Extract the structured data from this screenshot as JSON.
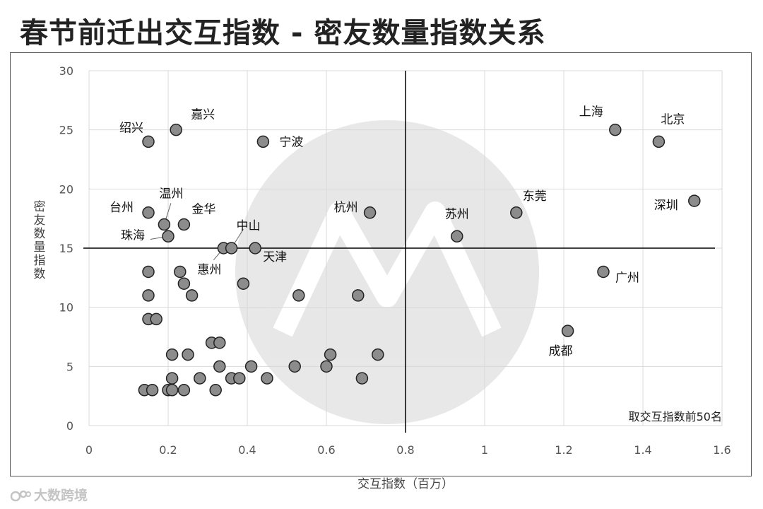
{
  "page": {
    "title": "春节前迁出交互指数 - 密友数量指数关系",
    "brand": "大数跨境"
  },
  "chart_data": {
    "type": "scatter",
    "xlabel": "交互指数（百万）",
    "ylabel": "密友数量指数",
    "xlim": [
      0,
      1.6
    ],
    "ylim": [
      0,
      30
    ],
    "xticks": [
      0,
      0.2,
      0.4,
      0.6,
      0.8,
      1,
      1.2,
      1.4,
      1.6
    ],
    "yticks": [
      0,
      5,
      10,
      15,
      20,
      25,
      30
    ],
    "grid": true,
    "reference_lines": {
      "x": 0.8,
      "y": 15
    },
    "annotation": "取交互指数前50名",
    "colors": {
      "point_fill": "#8c8c8c",
      "point_stroke": "#222222",
      "grid": "#d9d9d9",
      "axis_text": "#555555"
    },
    "points": [
      {
        "x": 1.44,
        "y": 24,
        "label": "北京"
      },
      {
        "x": 1.33,
        "y": 25,
        "label": "上海"
      },
      {
        "x": 1.53,
        "y": 19,
        "label": "深圳"
      },
      {
        "x": 1.3,
        "y": 13,
        "label": "广州"
      },
      {
        "x": 1.21,
        "y": 8,
        "label": "成都"
      },
      {
        "x": 1.08,
        "y": 18,
        "label": "东莞"
      },
      {
        "x": 0.93,
        "y": 16,
        "label": "苏州"
      },
      {
        "x": 0.71,
        "y": 18,
        "label": "杭州"
      },
      {
        "x": 0.44,
        "y": 24,
        "label": "宁波"
      },
      {
        "x": 0.22,
        "y": 25,
        "label": "嘉兴"
      },
      {
        "x": 0.15,
        "y": 24,
        "label": "绍兴"
      },
      {
        "x": 0.15,
        "y": 18,
        "label": "台州"
      },
      {
        "x": 0.19,
        "y": 17,
        "label": "温州"
      },
      {
        "x": 0.24,
        "y": 17,
        "label": "金华"
      },
      {
        "x": 0.2,
        "y": 16,
        "label": "珠海"
      },
      {
        "x": 0.34,
        "y": 15,
        "label": "惠州"
      },
      {
        "x": 0.36,
        "y": 15,
        "label": "中山"
      },
      {
        "x": 0.42,
        "y": 15,
        "label": "天津"
      },
      {
        "x": 0.15,
        "y": 13,
        "label": ""
      },
      {
        "x": 0.23,
        "y": 13,
        "label": ""
      },
      {
        "x": 0.24,
        "y": 12,
        "label": ""
      },
      {
        "x": 0.39,
        "y": 12,
        "label": ""
      },
      {
        "x": 0.15,
        "y": 11,
        "label": ""
      },
      {
        "x": 0.26,
        "y": 11,
        "label": ""
      },
      {
        "x": 0.53,
        "y": 11,
        "label": ""
      },
      {
        "x": 0.68,
        "y": 11,
        "label": ""
      },
      {
        "x": 0.15,
        "y": 9,
        "label": ""
      },
      {
        "x": 0.17,
        "y": 9,
        "label": ""
      },
      {
        "x": 0.31,
        "y": 7,
        "label": ""
      },
      {
        "x": 0.33,
        "y": 7,
        "label": ""
      },
      {
        "x": 0.21,
        "y": 6,
        "label": ""
      },
      {
        "x": 0.25,
        "y": 6,
        "label": ""
      },
      {
        "x": 0.61,
        "y": 6,
        "label": ""
      },
      {
        "x": 0.73,
        "y": 6,
        "label": ""
      },
      {
        "x": 0.33,
        "y": 5,
        "label": ""
      },
      {
        "x": 0.41,
        "y": 5,
        "label": ""
      },
      {
        "x": 0.52,
        "y": 5,
        "label": ""
      },
      {
        "x": 0.6,
        "y": 5,
        "label": ""
      },
      {
        "x": 0.21,
        "y": 4,
        "label": ""
      },
      {
        "x": 0.28,
        "y": 4,
        "label": ""
      },
      {
        "x": 0.36,
        "y": 4,
        "label": ""
      },
      {
        "x": 0.38,
        "y": 4,
        "label": ""
      },
      {
        "x": 0.45,
        "y": 4,
        "label": ""
      },
      {
        "x": 0.69,
        "y": 4,
        "label": ""
      },
      {
        "x": 0.14,
        "y": 3,
        "label": ""
      },
      {
        "x": 0.16,
        "y": 3,
        "label": ""
      },
      {
        "x": 0.2,
        "y": 3,
        "label": ""
      },
      {
        "x": 0.21,
        "y": 3,
        "label": ""
      },
      {
        "x": 0.24,
        "y": 3,
        "label": ""
      },
      {
        "x": 0.32,
        "y": 3,
        "label": ""
      }
    ]
  }
}
